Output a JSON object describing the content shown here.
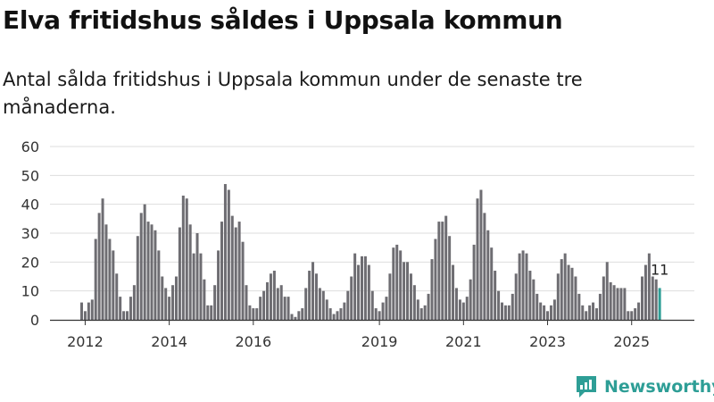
{
  "title": "Elva fritidshus såldes i Uppsala kommun",
  "subtitle": "Antal sålda fritidshus i Uppsala kommun under de senaste tre månaderna.",
  "brand": {
    "name": "Newsworthy"
  },
  "colors": {
    "bar": "#6e6d72",
    "highlight": "#2e9e96",
    "grid": "#dddddd",
    "axis": "#333333",
    "brand": "#2e9e96"
  },
  "chart_data": {
    "type": "bar",
    "title": "Antal sålda fritidshus i Uppsala kommun",
    "xlabel": "",
    "ylabel": "",
    "ylim": [
      0,
      60
    ],
    "yticks": [
      0,
      10,
      20,
      30,
      40,
      50,
      60
    ],
    "xticks": [
      "2012",
      "2014",
      "2016",
      "2019",
      "2021",
      "2023",
      "2025"
    ],
    "x_start": "2011-12",
    "frequency": "monthly, rolling 3-month sum",
    "values": [
      6,
      3,
      6,
      7,
      28,
      37,
      42,
      33,
      28,
      24,
      16,
      8,
      3,
      3,
      8,
      12,
      29,
      37,
      40,
      34,
      33,
      31,
      24,
      15,
      11,
      8,
      12,
      15,
      32,
      43,
      42,
      33,
      23,
      30,
      23,
      14,
      5,
      5,
      12,
      24,
      34,
      47,
      45,
      36,
      32,
      34,
      27,
      12,
      5,
      4,
      4,
      8,
      10,
      13,
      16,
      17,
      11,
      12,
      8,
      8,
      2,
      1,
      3,
      4,
      11,
      17,
      20,
      16,
      11,
      10,
      7,
      4,
      2,
      3,
      4,
      6,
      10,
      15,
      23,
      19,
      22,
      22,
      19,
      10,
      4,
      3,
      6,
      8,
      16,
      25,
      26,
      24,
      20,
      20,
      16,
      12,
      7,
      4,
      5,
      9,
      21,
      28,
      34,
      34,
      36,
      29,
      19,
      11,
      7,
      6,
      8,
      14,
      26,
      42,
      45,
      37,
      31,
      25,
      17,
      10,
      6,
      5,
      5,
      9,
      16,
      23,
      24,
      23,
      17,
      14,
      9,
      6,
      5,
      3,
      5,
      7,
      16,
      21,
      23,
      19,
      18,
      15,
      9,
      5,
      3,
      5,
      6,
      4,
      9,
      15,
      20,
      13,
      12,
      11,
      11,
      11,
      3,
      3,
      4,
      6,
      15,
      19,
      23,
      15,
      14,
      11
    ],
    "highlight_index": 165,
    "annotations": [
      {
        "index": 165,
        "label": "11"
      }
    ]
  }
}
